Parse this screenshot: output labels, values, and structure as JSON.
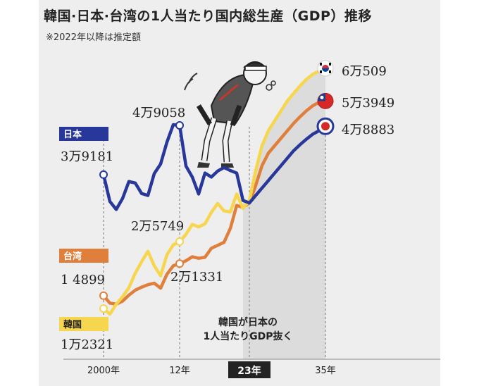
{
  "title": "韓国·日本·台湾の1人当たり国内総生産（GDP）推移",
  "note": "※2022年以降は推定額",
  "colors": {
    "japan": "#27379a",
    "taiwan": "#e07f3c",
    "korea": "#f7d64f",
    "projection_shade": "#dcdcdc",
    "card_bg": "#eeeeee"
  },
  "chart_data": {
    "type": "line",
    "x_unit": "year",
    "xlim": [
      1998,
      2039
    ],
    "ylim": [
      0,
      60509
    ],
    "x_ticks": [
      {
        "year": 2000,
        "label": "2000年"
      },
      {
        "year": 2012,
        "label": "12年"
      },
      {
        "year": 2023,
        "label": "23年",
        "highlight": true
      },
      {
        "year": 2035,
        "label": "35年"
      }
    ],
    "projection_start": 2022,
    "annotation": [
      "韓国が日本の",
      "1人当たりGDP抜く"
    ],
    "series": [
      {
        "key": "japan",
        "name": "日本",
        "color": "#27379a",
        "x": [
          2000,
          2001,
          2002,
          2003,
          2004,
          2005,
          2006,
          2007,
          2008,
          2009,
          2010,
          2011,
          2012,
          2013,
          2014,
          2015,
          2016,
          2017,
          2018,
          2019,
          2020,
          2021,
          2022,
          2023,
          2024,
          2025,
          2026,
          2027,
          2028,
          2029,
          2030,
          2031,
          2032,
          2033,
          2034,
          2035
        ],
        "y": [
          39181,
          33800,
          32200,
          34400,
          37800,
          37500,
          35400,
          35000,
          39400,
          41300,
          45700,
          49200,
          49058,
          40900,
          38700,
          35300,
          39500,
          38700,
          39900,
          40600,
          40000,
          39500,
          34000,
          33500,
          35000,
          36500,
          38000,
          39500,
          41000,
          42500,
          44000,
          45200,
          46300,
          47300,
          48000,
          48883
        ],
        "labels": [
          {
            "year": 2000,
            "text": "3万9181"
          },
          {
            "year": 2012,
            "text": "4万9058"
          },
          {
            "year": 2035,
            "text": "4万8883"
          }
        ],
        "flag": "japan-flag"
      },
      {
        "key": "taiwan",
        "name": "台湾",
        "color": "#e07f3c",
        "x": [
          2000,
          2001,
          2002,
          2003,
          2004,
          2005,
          2006,
          2007,
          2008,
          2009,
          2010,
          2011,
          2012,
          2013,
          2014,
          2015,
          2016,
          2017,
          2018,
          2019,
          2020,
          2021,
          2022,
          2023,
          2024,
          2025,
          2026,
          2027,
          2028,
          2029,
          2030,
          2031,
          2032,
          2033,
          2034,
          2035
        ],
        "y": [
          14899,
          13400,
          13200,
          13800,
          15000,
          16000,
          16600,
          17100,
          17400,
          16400,
          19200,
          20900,
          21331,
          21900,
          22700,
          22400,
          22600,
          24400,
          25000,
          25600,
          28400,
          33000,
          32600,
          33500,
          37000,
          41000,
          43500,
          45000,
          46500,
          48000,
          49500,
          50800,
          52000,
          53000,
          53700,
          53949
        ],
        "labels": [
          {
            "year": 2000,
            "text": "1 4899"
          },
          {
            "year": 2012,
            "text": "2万1331"
          },
          {
            "year": 2035,
            "text": "5万3949"
          }
        ],
        "flag": "taiwan-flag"
      },
      {
        "key": "korea",
        "name": "韓国",
        "color": "#f7d64f",
        "x": [
          2000,
          2001,
          2002,
          2003,
          2004,
          2005,
          2006,
          2007,
          2008,
          2009,
          2010,
          2011,
          2012,
          2013,
          2014,
          2015,
          2016,
          2017,
          2018,
          2019,
          2020,
          2021,
          2022,
          2023,
          2024,
          2025,
          2026,
          2027,
          2028,
          2029,
          2030,
          2031,
          2032,
          2033,
          2034,
          2035
        ],
        "y": [
          12321,
          11200,
          13200,
          14700,
          16500,
          19400,
          21700,
          23800,
          20900,
          18900,
          23100,
          25100,
          25749,
          27200,
          29200,
          28700,
          29300,
          31600,
          33400,
          31900,
          31700,
          35300,
          32400,
          34000,
          40000,
          45000,
          48000,
          50000,
          52000,
          54000,
          55500,
          57000,
          58300,
          59300,
          60000,
          60509
        ],
        "labels": [
          {
            "year": 2000,
            "text": "1万2321"
          },
          {
            "year": 2012,
            "text": "2万5749"
          },
          {
            "year": 2035,
            "text": "6万509"
          }
        ],
        "flag": "korea-flag"
      }
    ]
  }
}
